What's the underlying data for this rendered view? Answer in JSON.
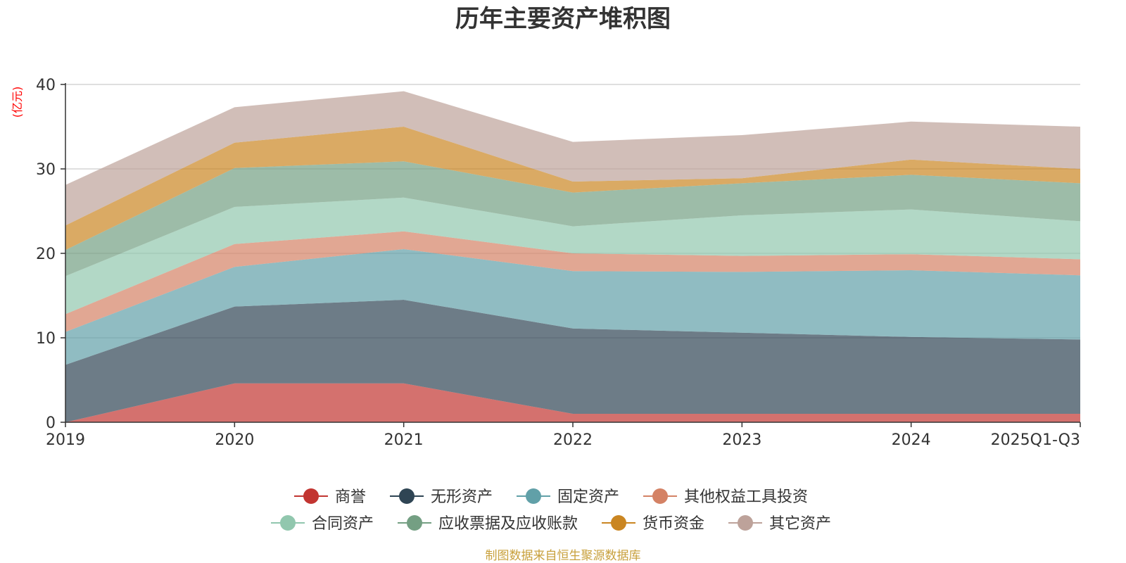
{
  "chart_data": {
    "type": "area",
    "stacked": true,
    "title": "历年主要资产堆积图",
    "ylabel": "(亿元)",
    "ylim": [
      0,
      40
    ],
    "yticks": [
      0,
      10,
      20,
      30,
      40
    ],
    "categories": [
      "2019",
      "2020",
      "2021",
      "2022",
      "2023",
      "2024",
      "2025Q1-Q3"
    ],
    "series": [
      {
        "name": "商誉",
        "color": "#c23531",
        "values": [
          0.0,
          4.6,
          4.6,
          1.0,
          1.0,
          1.0,
          1.0
        ]
      },
      {
        "name": "无形资产",
        "color": "#2f4554",
        "values": [
          6.8,
          9.1,
          9.9,
          10.1,
          9.6,
          9.1,
          8.8
        ]
      },
      {
        "name": "固定资产",
        "color": "#61a0a8",
        "values": [
          3.9,
          4.7,
          6.0,
          6.8,
          7.2,
          7.9,
          7.6
        ]
      },
      {
        "name": "其他权益工具投资",
        "color": "#d48265",
        "values": [
          2.1,
          2.7,
          2.1,
          2.1,
          1.9,
          1.9,
          1.9
        ]
      },
      {
        "name": "合同资产",
        "color": "#91c7ae",
        "values": [
          4.5,
          4.4,
          4.0,
          3.2,
          4.8,
          5.3,
          4.5
        ]
      },
      {
        "name": "应收票据及应收账款",
        "color": "#749f83",
        "values": [
          3.1,
          4.6,
          4.3,
          4.0,
          3.8,
          4.1,
          4.5
        ]
      },
      {
        "name": "货币资金",
        "color": "#ca8622",
        "values": [
          2.9,
          3.0,
          4.1,
          1.3,
          0.6,
          1.8,
          1.7
        ]
      },
      {
        "name": "其它资产",
        "color": "#bda29a",
        "values": [
          4.8,
          4.2,
          4.2,
          4.7,
          5.1,
          4.5,
          5.0
        ]
      }
    ],
    "legend_position": "bottom",
    "grid": true
  },
  "footer": {
    "source": "制图数据来自恒生聚源数据库"
  }
}
